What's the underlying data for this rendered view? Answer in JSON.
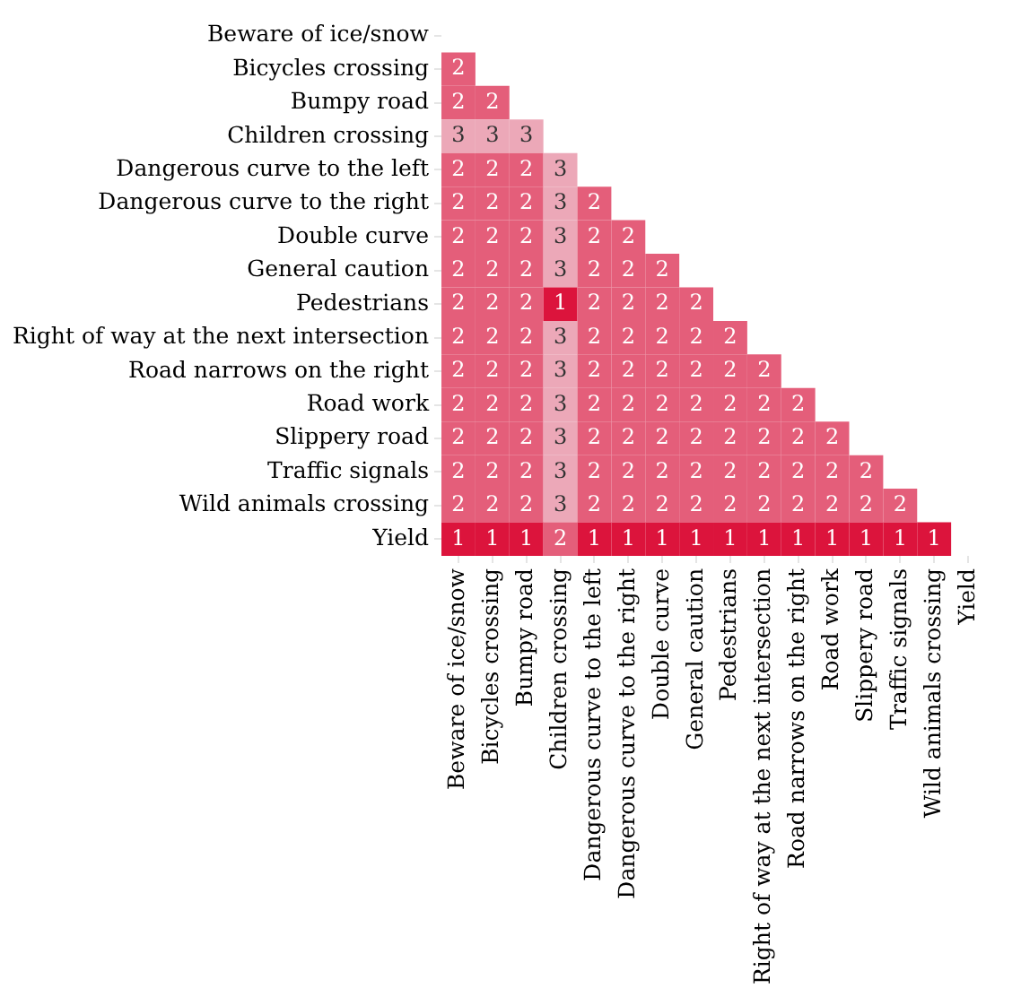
{
  "chart_data": {
    "type": "heatmap",
    "categories": [
      "Beware of ice/snow",
      "Bicycles crossing",
      "Bumpy road",
      "Children crossing",
      "Dangerous curve to the left",
      "Dangerous curve to the right",
      "Double curve",
      "General caution",
      "Pedestrians",
      "Right of way at the next intersection",
      "Road narrows on the right",
      "Road work",
      "Slippery road",
      "Traffic signals",
      "Wild animals crossing",
      "Yield"
    ],
    "y_categories": [
      "Beware of ice/snow",
      "Bicycles crossing",
      "Bumpy road",
      "Children crossing",
      "Dangerous curve to the left",
      "Dangerous curve to the right",
      "Double curve",
      "General caution",
      "Pedestrians",
      "Right of way at the next intersection",
      "Road narrows on the right",
      "Road work",
      "Slippery road",
      "Traffic signals",
      "Wild animals crossing",
      "Yield"
    ],
    "cells": [
      [
        null,
        null,
        null,
        null,
        null,
        null,
        null,
        null,
        null,
        null,
        null,
        null,
        null,
        null,
        null,
        null
      ],
      [
        2,
        null,
        null,
        null,
        null,
        null,
        null,
        null,
        null,
        null,
        null,
        null,
        null,
        null,
        null,
        null
      ],
      [
        2,
        2,
        null,
        null,
        null,
        null,
        null,
        null,
        null,
        null,
        null,
        null,
        null,
        null,
        null,
        null
      ],
      [
        3,
        3,
        3,
        null,
        null,
        null,
        null,
        null,
        null,
        null,
        null,
        null,
        null,
        null,
        null,
        null
      ],
      [
        2,
        2,
        2,
        3,
        null,
        null,
        null,
        null,
        null,
        null,
        null,
        null,
        null,
        null,
        null,
        null
      ],
      [
        2,
        2,
        2,
        3,
        2,
        null,
        null,
        null,
        null,
        null,
        null,
        null,
        null,
        null,
        null,
        null
      ],
      [
        2,
        2,
        2,
        3,
        2,
        2,
        null,
        null,
        null,
        null,
        null,
        null,
        null,
        null,
        null,
        null
      ],
      [
        2,
        2,
        2,
        3,
        2,
        2,
        2,
        null,
        null,
        null,
        null,
        null,
        null,
        null,
        null,
        null
      ],
      [
        2,
        2,
        2,
        1,
        2,
        2,
        2,
        2,
        null,
        null,
        null,
        null,
        null,
        null,
        null,
        null
      ],
      [
        2,
        2,
        2,
        3,
        2,
        2,
        2,
        2,
        2,
        null,
        null,
        null,
        null,
        null,
        null,
        null
      ],
      [
        2,
        2,
        2,
        3,
        2,
        2,
        2,
        2,
        2,
        2,
        null,
        null,
        null,
        null,
        null,
        null
      ],
      [
        2,
        2,
        2,
        3,
        2,
        2,
        2,
        2,
        2,
        2,
        2,
        null,
        null,
        null,
        null,
        null
      ],
      [
        2,
        2,
        2,
        3,
        2,
        2,
        2,
        2,
        2,
        2,
        2,
        2,
        null,
        null,
        null,
        null
      ],
      [
        2,
        2,
        2,
        3,
        2,
        2,
        2,
        2,
        2,
        2,
        2,
        2,
        2,
        null,
        null,
        null
      ],
      [
        2,
        2,
        2,
        3,
        2,
        2,
        2,
        2,
        2,
        2,
        2,
        2,
        2,
        2,
        null,
        null
      ],
      [
        1,
        1,
        1,
        2,
        1,
        1,
        1,
        1,
        1,
        1,
        1,
        1,
        1,
        1,
        1,
        null
      ]
    ],
    "data_labels": true
  }
}
